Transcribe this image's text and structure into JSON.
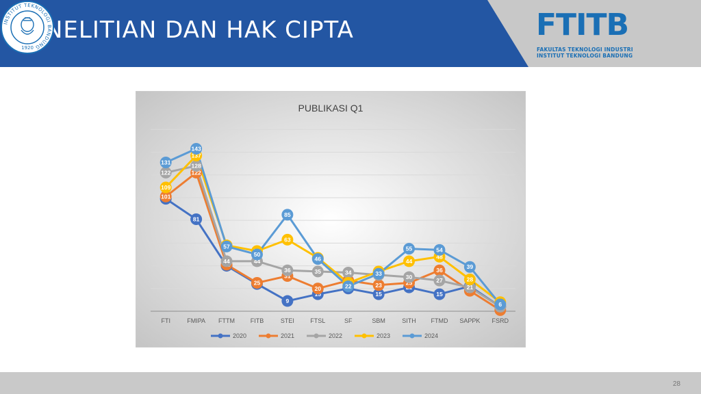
{
  "slide": {
    "title": "PENELITIAN DAN HAK CIPTA",
    "page_number": "28",
    "colors": {
      "header_blue": "#2356a3",
      "header_gray": "#c8c8c8",
      "footer_gray": "#c9c9c9"
    }
  },
  "logo": {
    "mark": "FTITB",
    "line1": "FAKULTAS TEKNOLOGI INDUSTRI",
    "line2": "INSTITUT TEKNOLOGI BANDUNG",
    "seal_text": "INSTITUT TEKNOLOGI BANDUNG",
    "seal_year": "1920"
  },
  "chart_data": {
    "type": "line",
    "title": "PUBLIKASI Q1",
    "categories": [
      "FTI",
      "FMIPA",
      "FTTM",
      "FITB",
      "STEI",
      "FTSL",
      "SF",
      "SBM",
      "SITH",
      "FTMD",
      "SAPPK",
      "FSRD"
    ],
    "ylim": [
      0,
      165
    ],
    "grid": true,
    "legend_position": "bottom",
    "series": [
      {
        "name": "2020",
        "color": "#4472c4",
        "values": [
          99,
          81,
          40,
          24,
          9,
          15,
          20,
          15,
          21,
          15,
          22,
          4
        ]
      },
      {
        "name": "2021",
        "color": "#ed7d31",
        "values": [
          101,
          122,
          41,
          25,
          31,
          20,
          27,
          23,
          25,
          36,
          18,
          1
        ]
      },
      {
        "name": "2022",
        "color": "#a5a5a5",
        "values": [
          122,
          128,
          44,
          44,
          36,
          35,
          34,
          32,
          30,
          27,
          21,
          4
        ]
      },
      {
        "name": "2023",
        "color": "#ffc000",
        "values": [
          109,
          137,
          58,
          53,
          63,
          47,
          25,
          35,
          44,
          48,
          28,
          8
        ]
      },
      {
        "name": "2024",
        "color": "#5b9bd5",
        "values": [
          131,
          143,
          57,
          50,
          85,
          46,
          22,
          33,
          55,
          54,
          39,
          6
        ]
      }
    ]
  }
}
